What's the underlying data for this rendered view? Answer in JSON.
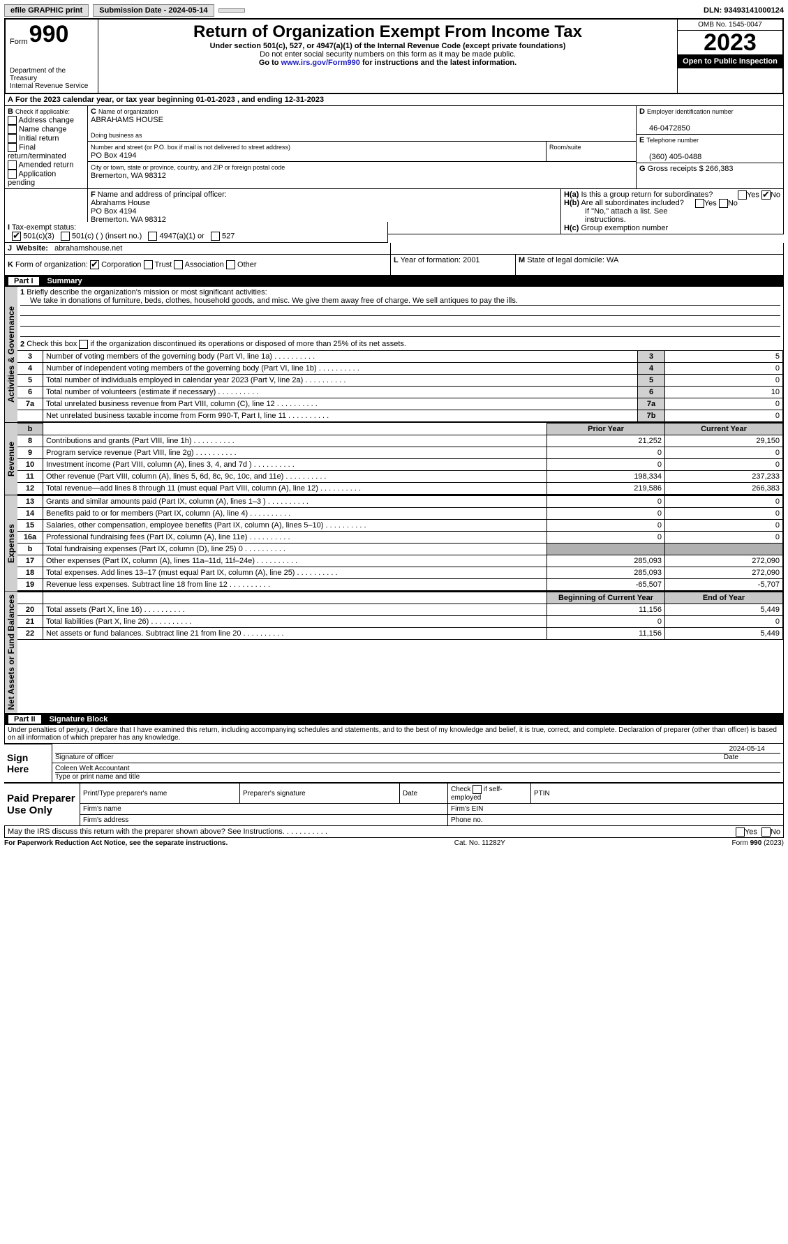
{
  "topbar": {
    "efile": "efile GRAPHIC print",
    "subdate_label": "Submission Date - ",
    "subdate": "2024-05-14",
    "dln_label": "DLN: ",
    "dln": "93493141000124"
  },
  "header": {
    "form_label": "Form",
    "form_no": "990",
    "dept": "Department of the Treasury\nInternal Revenue Service",
    "title": "Return of Organization Exempt From Income Tax",
    "sub1": "Under section 501(c), 527, or 4947(a)(1) of the Internal Revenue Code (except private foundations)",
    "sub2": "Do not enter social security numbers on this form as it may be made public.",
    "sub3_a": "Go to ",
    "sub3_link": "www.irs.gov/Form990",
    "sub3_b": " for instructions and the latest information.",
    "omb": "OMB No. 1545-0047",
    "year": "2023",
    "open": "Open to Public Inspection"
  },
  "A": {
    "text": "For the 2023 calendar year, or tax year beginning ",
    "begin": "01-01-2023",
    "mid": " , and ending ",
    "end": "12-31-2023"
  },
  "B": {
    "label": "Check if applicable:",
    "opts": [
      "Address change",
      "Name change",
      "Initial return",
      "Final return/terminated",
      "Amended return",
      "Application pending"
    ]
  },
  "C": {
    "name_label": "Name of organization",
    "name": "ABRAHAMS HOUSE",
    "dba_label": "Doing business as",
    "addr_label": "Number and street (or P.O. box if mail is not delivered to street address)",
    "addr": "PO Box 4194",
    "room_label": "Room/suite",
    "city_label": "City or town, state or province, country, and ZIP or foreign postal code",
    "city": "Bremerton, WA  98312"
  },
  "D": {
    "label": "Employer identification number",
    "val": "46-0472850"
  },
  "E": {
    "label": "Telephone number",
    "val": "(360) 405-0488"
  },
  "G": {
    "label": "Gross receipts $",
    "val": "266,383"
  },
  "F": {
    "label": "Name and address of principal officer:",
    "name": "Abrahams House",
    "addr1": "PO Box 4194",
    "addr2": "Bremerton, WA  98312"
  },
  "H": {
    "a": "Is this a group return for subordinates?",
    "b": "Are all subordinates included?",
    "note": "If \"No,\" attach a list. See instructions.",
    "c": "Group exemption number",
    "a_no": true
  },
  "I": {
    "label": "Tax-exempt status:",
    "o1": "501(c)(3)",
    "o2": "501(c) (  ) (insert no.)",
    "o3": "4947(a)(1) or",
    "o4": "527",
    "checked": 0
  },
  "J": {
    "label": "Website:",
    "val": "abrahamshouse.net"
  },
  "K": {
    "label": "Form of organization:",
    "opts": [
      "Corporation",
      "Trust",
      "Association",
      "Other"
    ],
    "checked": 0
  },
  "L": {
    "label": "Year of formation:",
    "val": "2001"
  },
  "M": {
    "label": "State of legal domicile:",
    "val": "WA"
  },
  "part1": {
    "hdr": "Part I",
    "title": "Summary",
    "vlabels": [
      "Activities & Governance",
      "Revenue",
      "Expenses",
      "Net Assets or Fund Balances"
    ]
  },
  "p1": {
    "l1_label": "Briefly describe the organization's mission or most significant activities:",
    "l1": "We take in donations of furniture, beds, clothes, household goods, and misc. We give them away free of charge. We sell antiques to pay the ills.",
    "l2": "Check this box      if the organization discontinued its operations or disposed of more than 25% of its net assets.",
    "rows_ag": [
      {
        "n": "3",
        "t": "Number of voting members of the governing body (Part VI, line 1a)",
        "k": "3",
        "v": "5"
      },
      {
        "n": "4",
        "t": "Number of independent voting members of the governing body (Part VI, line 1b)",
        "k": "4",
        "v": "0"
      },
      {
        "n": "5",
        "t": "Total number of individuals employed in calendar year 2023 (Part V, line 2a)",
        "k": "5",
        "v": "0"
      },
      {
        "n": "6",
        "t": "Total number of volunteers (estimate if necessary)",
        "k": "6",
        "v": "10"
      },
      {
        "n": "7a",
        "t": "Total unrelated business revenue from Part VIII, column (C), line 12",
        "k": "7a",
        "v": "0"
      },
      {
        "n": "",
        "t": "Net unrelated business taxable income from Form 990-T, Part I, line 11",
        "k": "7b",
        "v": "0"
      }
    ],
    "col_prior": "Prior Year",
    "col_curr": "Current Year",
    "rows_rev": [
      {
        "n": "8",
        "t": "Contributions and grants (Part VIII, line 1h)",
        "p": "21,252",
        "c": "29,150"
      },
      {
        "n": "9",
        "t": "Program service revenue (Part VIII, line 2g)",
        "p": "0",
        "c": "0"
      },
      {
        "n": "10",
        "t": "Investment income (Part VIII, column (A), lines 3, 4, and 7d )",
        "p": "0",
        "c": "0"
      },
      {
        "n": "11",
        "t": "Other revenue (Part VIII, column (A), lines 5, 6d, 8c, 9c, 10c, and 11e)",
        "p": "198,334",
        "c": "237,233"
      },
      {
        "n": "12",
        "t": "Total revenue—add lines 8 through 11 (must equal Part VIII, column (A), line 12)",
        "p": "219,586",
        "c": "266,383"
      }
    ],
    "rows_exp": [
      {
        "n": "13",
        "t": "Grants and similar amounts paid (Part IX, column (A), lines 1–3 )",
        "p": "0",
        "c": "0"
      },
      {
        "n": "14",
        "t": "Benefits paid to or for members (Part IX, column (A), line 4)",
        "p": "0",
        "c": "0"
      },
      {
        "n": "15",
        "t": "Salaries, other compensation, employee benefits (Part IX, column (A), lines 5–10)",
        "p": "0",
        "c": "0"
      },
      {
        "n": "16a",
        "t": "Professional fundraising fees (Part IX, column (A), line 11e)",
        "p": "0",
        "c": "0"
      },
      {
        "n": "b",
        "t": "Total fundraising expenses (Part IX, column (D), line 25) 0",
        "p": "",
        "c": "",
        "grey": true
      },
      {
        "n": "17",
        "t": "Other expenses (Part IX, column (A), lines 11a–11d, 11f–24e)",
        "p": "285,093",
        "c": "272,090"
      },
      {
        "n": "18",
        "t": "Total expenses. Add lines 13–17 (must equal Part IX, column (A), line 25)",
        "p": "285,093",
        "c": "272,090"
      },
      {
        "n": "19",
        "t": "Revenue less expenses. Subtract line 18 from line 12",
        "p": "-65,507",
        "c": "-5,707"
      }
    ],
    "col_boy": "Beginning of Current Year",
    "col_eoy": "End of Year",
    "rows_na": [
      {
        "n": "20",
        "t": "Total assets (Part X, line 16)",
        "p": "11,156",
        "c": "5,449"
      },
      {
        "n": "21",
        "t": "Total liabilities (Part X, line 26)",
        "p": "0",
        "c": "0"
      },
      {
        "n": "22",
        "t": "Net assets or fund balances. Subtract line 21 from line 20",
        "p": "11,156",
        "c": "5,449"
      }
    ]
  },
  "part2": {
    "hdr": "Part II",
    "title": "Signature Block",
    "decl": "Under penalties of perjury, I declare that I have examined this return, including accompanying schedules and statements, and to the best of my knowledge and belief, it is true, correct, and complete. Declaration of preparer (other than officer) is based on all information of which preparer has any knowledge.",
    "sign_here": "Sign Here",
    "sig_officer": "Signature of officer",
    "date": "Date",
    "sig_date": "2024-05-14",
    "officer_name": "Coleen Welt Accountant",
    "type_name": "Type or print name and title",
    "paid": "Paid Preparer Use Only",
    "prep_name": "Print/Type preparer's name",
    "prep_sig": "Preparer's signature",
    "prep_date": "Date",
    "check_self": "Check       if self-employed",
    "ptin": "PTIN",
    "firm_name": "Firm's name",
    "firm_ein": "Firm's EIN",
    "firm_addr": "Firm's address",
    "phone": "Phone no.",
    "discuss": "May the IRS discuss this return with the preparer shown above? See Instructions.",
    "paperwork": "For Paperwork Reduction Act Notice, see the separate instructions.",
    "cat": "Cat. No. 11282Y",
    "form": "Form 990 (2023)"
  }
}
